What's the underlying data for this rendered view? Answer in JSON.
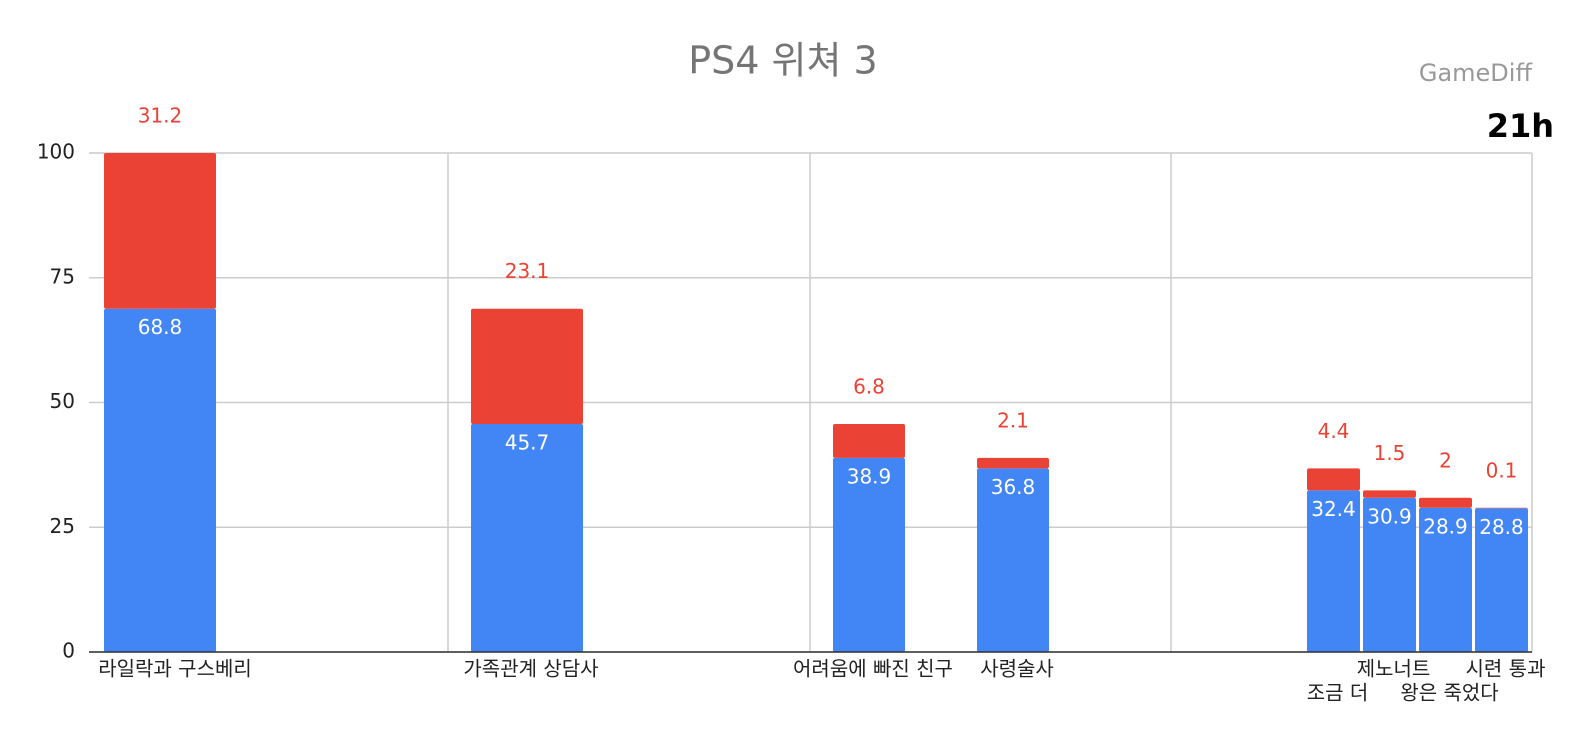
{
  "chart_data": {
    "type": "stacked_bar",
    "title": "PS4 위쳐 3",
    "source": "GameDiff",
    "annotation": "21h",
    "categories": [
      "라일락과 구스베리",
      "가족관계 상담사",
      "어려움에 빠진 친구",
      "사령술사",
      "조금 더",
      "제노너트",
      "왕은 죽었다",
      "시련 통과"
    ],
    "series": [
      {
        "color": "#4285f4",
        "values": [
          68.8,
          45.7,
          38.9,
          36.8,
          32.4,
          30.9,
          28.9,
          28.8
        ]
      },
      {
        "color": "#ea4335",
        "values": [
          31.2,
          23.1,
          6.8,
          2.1,
          4.4,
          1.5,
          2,
          0.1
        ]
      }
    ],
    "ylim": [
      0,
      100
    ],
    "yticks": [
      0,
      25,
      50,
      75,
      100
    ],
    "grid": true
  }
}
